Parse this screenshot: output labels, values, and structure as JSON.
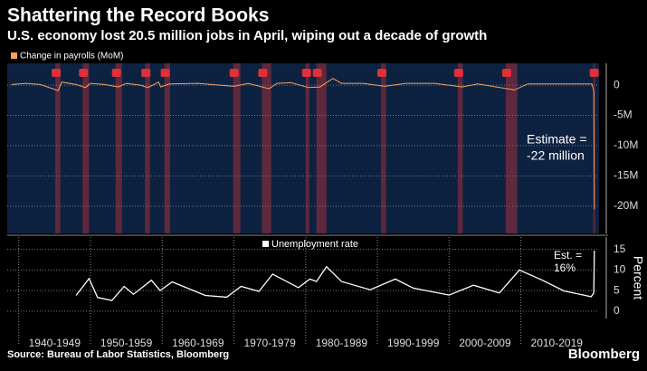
{
  "title": "Shattering the Record Books",
  "subtitle": "U.S. economy lost 20.5 million jobs in April, wiping out a decade of growth",
  "source": "Source: Bureau of Labor Statistics, Bloomberg",
  "brand": "Bloomberg",
  "chart_data": [
    {
      "type": "line",
      "xlim": [
        1938.4,
        2020.9
      ],
      "ylim": [
        -24.5,
        3.6
      ],
      "yticks": [
        {
          "value": 0,
          "label": "0"
        },
        {
          "value": -5,
          "label": "-5M"
        },
        {
          "value": -10,
          "label": "-10M"
        },
        {
          "value": -15,
          "label": "-15M"
        },
        {
          "value": -20,
          "label": "-20M"
        }
      ],
      "recessions": [
        [
          1945.1,
          1945.8
        ],
        [
          1948.9,
          1949.8
        ],
        [
          1953.5,
          1954.4
        ],
        [
          1957.6,
          1958.3
        ],
        [
          1960.3,
          1961.1
        ],
        [
          1969.9,
          1970.9
        ],
        [
          1973.9,
          1975.2
        ],
        [
          1980.0,
          1980.5
        ],
        [
          1981.5,
          1982.9
        ],
        [
          1990.5,
          1991.2
        ],
        [
          2001.2,
          2001.9
        ],
        [
          2007.9,
          2009.5
        ],
        [
          2020.1,
          2020.3
        ]
      ],
      "series": [
        {
          "name": "Change in payrolls (MoM)",
          "color": "#f5a35c",
          "x": [
            1939,
            1941,
            1943,
            1945.5,
            1946,
            1948,
            1949.3,
            1950,
            1952,
            1953.9,
            1955,
            1957,
            1958,
            1959.5,
            1959.8,
            1961,
            1965,
            1970,
            1972,
            1974.9,
            1976,
            1978,
            1980.4,
            1982,
            1983.8,
            1985,
            1988,
            1991,
            1994,
            1998,
            2001.8,
            2004,
            2009.1,
            2011,
            2015,
            2019.9,
            2020.17,
            2020.25
          ],
          "values": [
            0.1,
            0.3,
            0.1,
            -0.9,
            0.5,
            0.1,
            -0.4,
            0.3,
            0.1,
            -0.3,
            0.3,
            0.0,
            -0.4,
            0.5,
            -0.3,
            0.2,
            0.3,
            -0.2,
            0.3,
            -0.6,
            0.3,
            0.4,
            -0.4,
            -0.3,
            1.1,
            0.3,
            0.3,
            -0.2,
            0.3,
            0.3,
            -0.3,
            0.2,
            -0.8,
            0.2,
            0.2,
            0.2,
            -0.9,
            -20.5
          ]
        }
      ],
      "annotation": [
        "Estimate =",
        "-22 million"
      ]
    },
    {
      "type": "line",
      "xlim": [
        1938.4,
        2020.9
      ],
      "ylim": [
        -1.8,
        18
      ],
      "yticks": [
        0,
        5,
        10,
        15
      ],
      "ylabel": "Percent",
      "xticks": [
        {
          "value": 1940,
          "label": "1940-1949"
        },
        {
          "value": 1950,
          "label": "1950-1959"
        },
        {
          "value": 1960,
          "label": "1960-1969"
        },
        {
          "value": 1970,
          "label": "1970-1979"
        },
        {
          "value": 1980,
          "label": "1980-1989"
        },
        {
          "value": 1990,
          "label": "1990-1999"
        },
        {
          "value": 2000,
          "label": "2000-2009"
        },
        {
          "value": 2010,
          "label": "2010-2019"
        }
      ],
      "series": [
        {
          "name": "Unemployment rate",
          "color": "#ffffff",
          "x": [
            1948,
            1949.8,
            1951,
            1953,
            1954.7,
            1956,
            1958.5,
            1959.7,
            1961.4,
            1966,
            1969,
            1971,
            1973.5,
            1975.4,
            1979,
            1980.6,
            1981.5,
            1982.9,
            1985,
            1989,
            1992.5,
            1995,
            2000,
            2003.4,
            2007,
            2009.8,
            2013,
            2016,
            2019.8,
            2020.17,
            2020.25
          ],
          "values": [
            3.8,
            7.9,
            3.3,
            2.6,
            6.0,
            4.1,
            7.5,
            5.0,
            7.1,
            3.8,
            3.4,
            6.0,
            4.8,
            9.0,
            5.7,
            7.8,
            7.2,
            10.8,
            7.2,
            5.2,
            7.8,
            5.6,
            3.9,
            6.3,
            4.4,
            10.0,
            7.5,
            4.9,
            3.5,
            4.4,
            14.7
          ]
        }
      ],
      "annotation": [
        "Est. =",
        "16%"
      ]
    }
  ]
}
